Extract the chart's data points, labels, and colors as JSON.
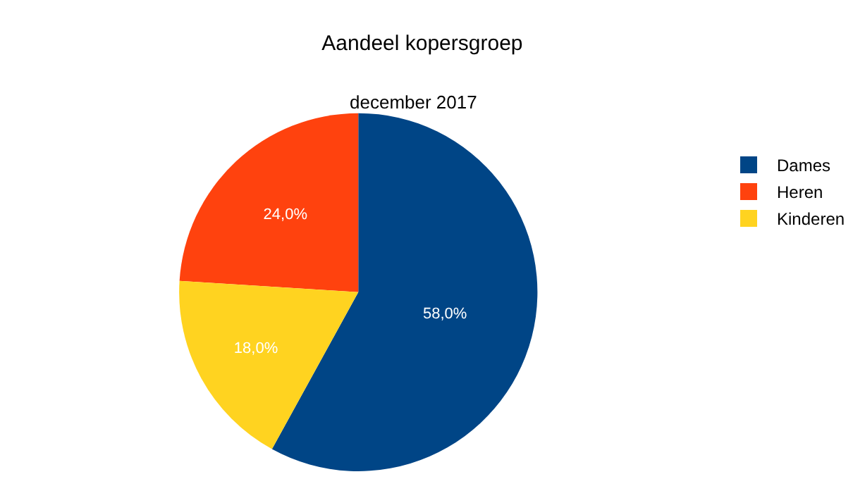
{
  "chart_data": {
    "type": "pie",
    "title": "Aandeel kopersgroep",
    "subtitle": "december 2017",
    "categories": [
      "Dames",
      "Heren",
      "Kinderen"
    ],
    "values": [
      58,
      24,
      18
    ],
    "colors": [
      "#004586",
      "#ff420e",
      "#ffd320"
    ],
    "value_labels": [
      "58,0%",
      "24,0%",
      "18,0%"
    ],
    "legend": "right"
  }
}
